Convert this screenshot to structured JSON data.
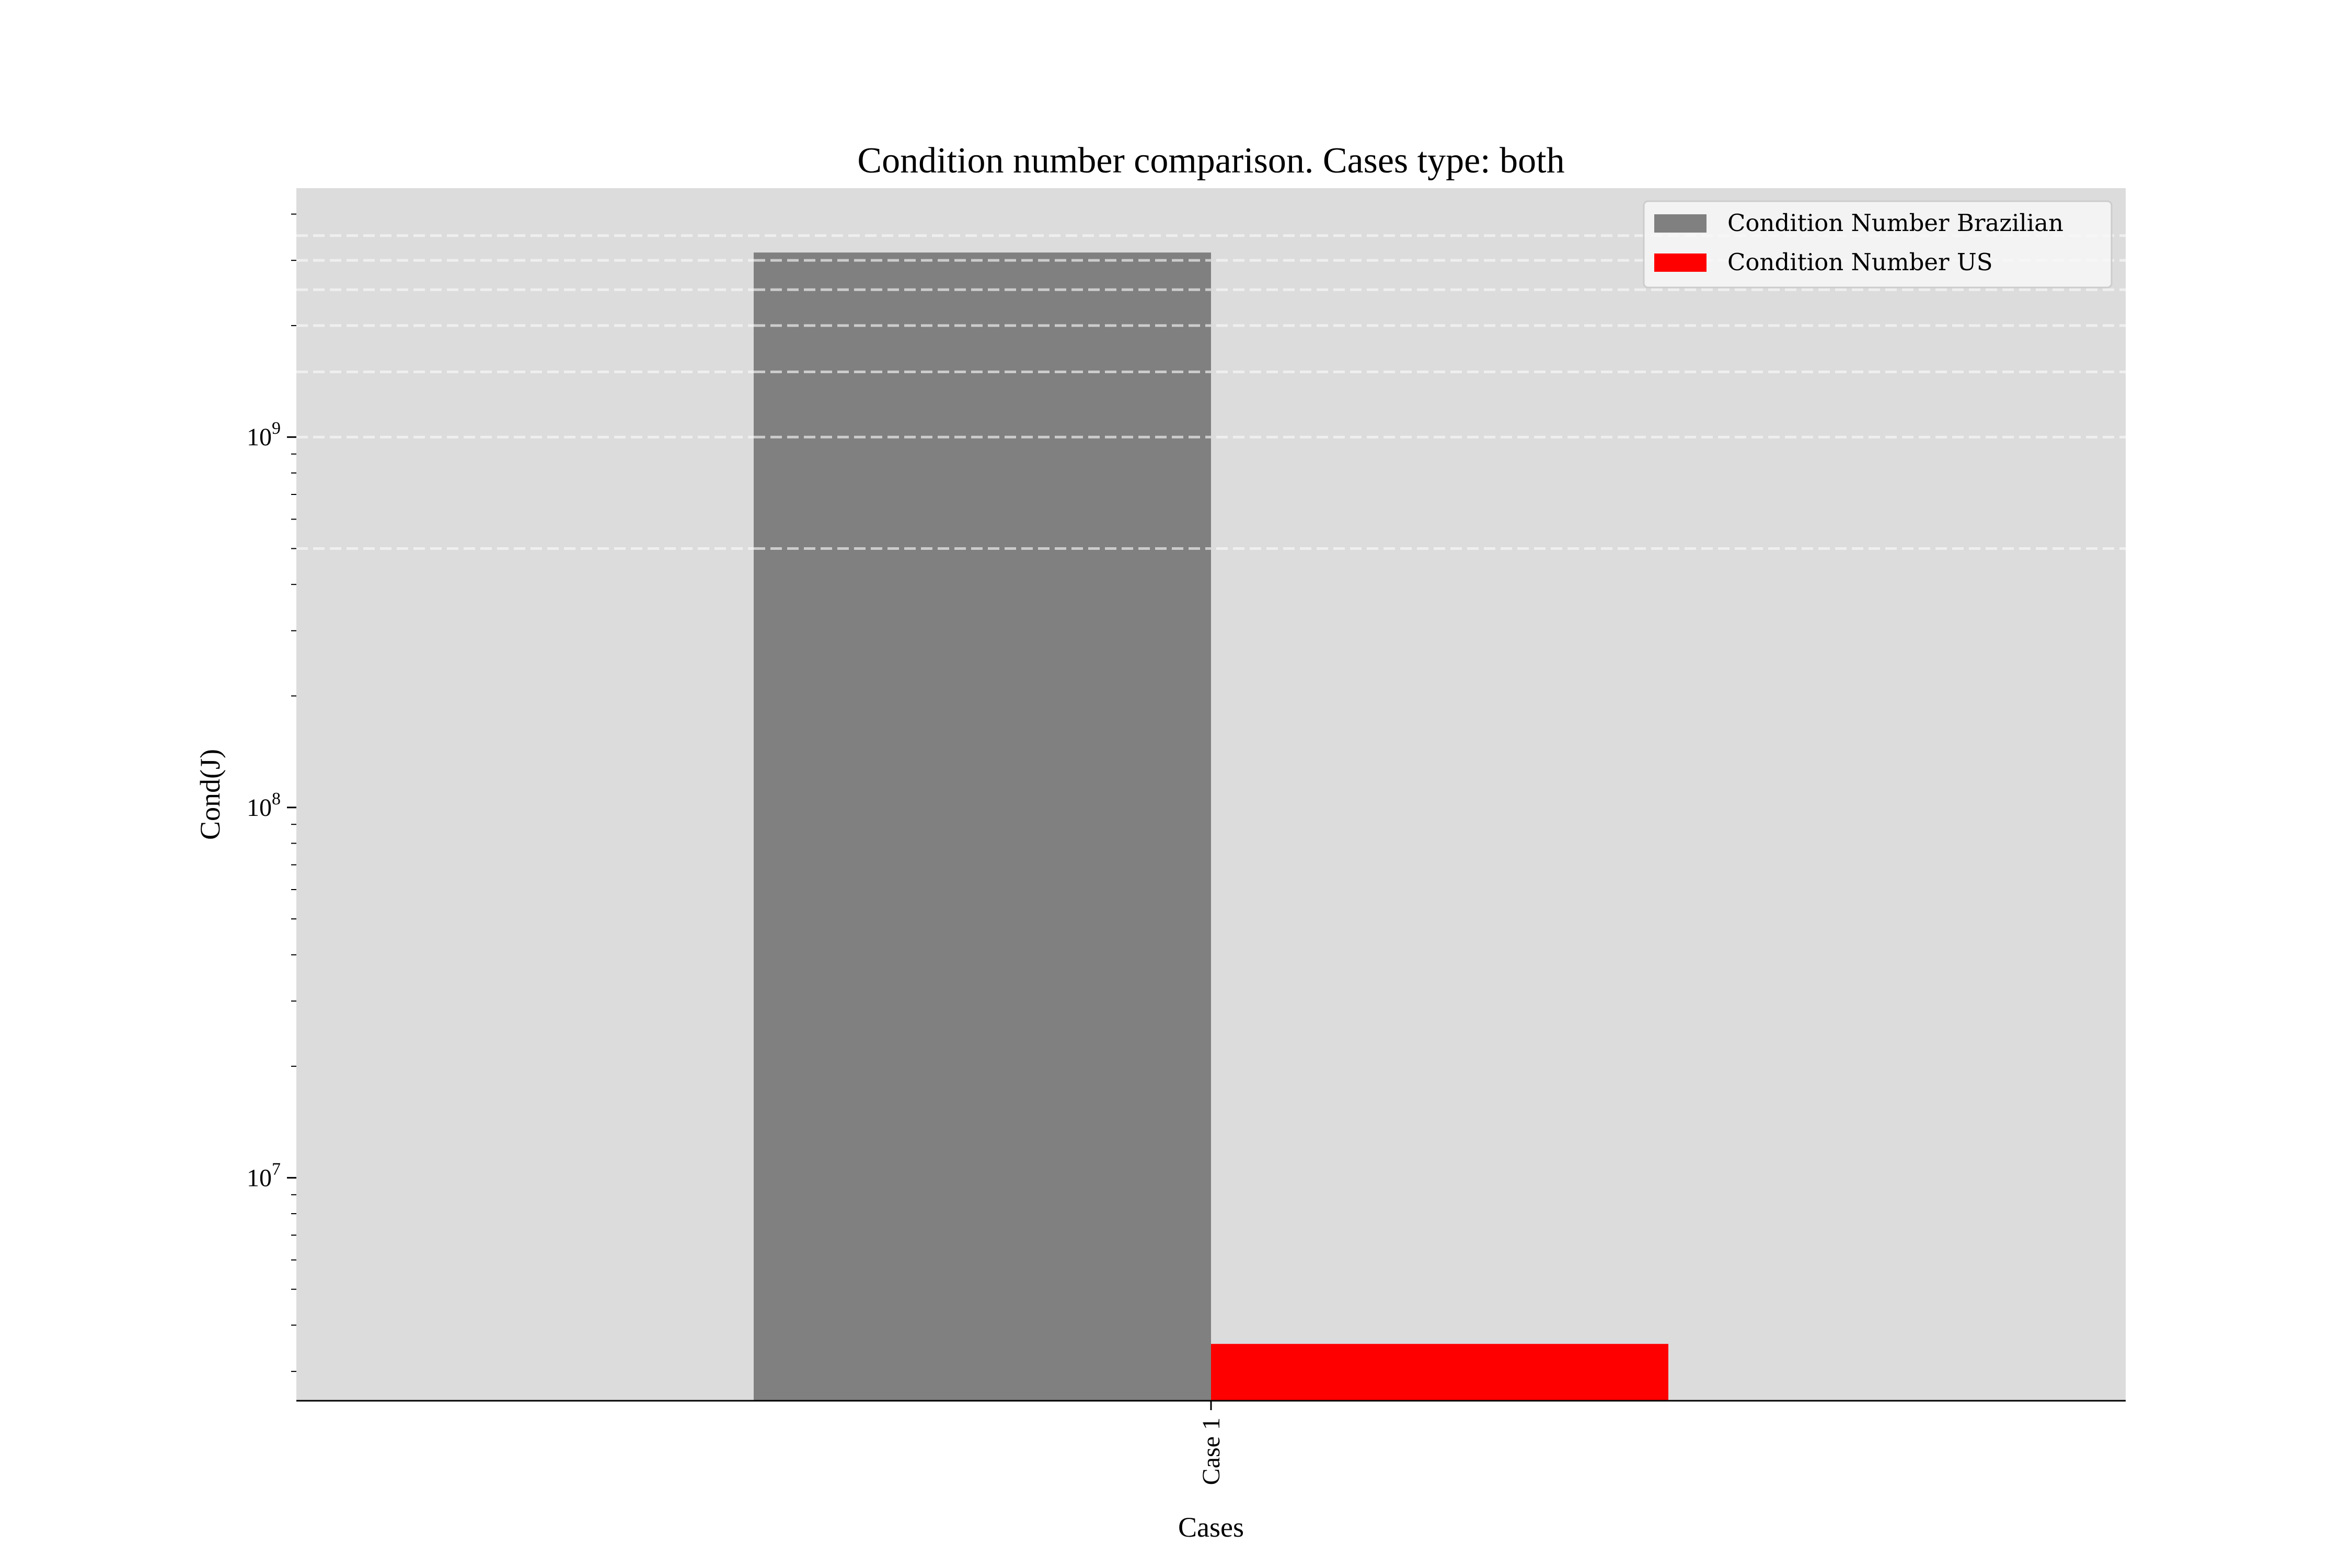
{
  "chart_data": {
    "type": "bar",
    "title": "Condition number comparison. Cases type: both",
    "xlabel": "Cases",
    "ylabel": "Cond(J)",
    "categories": [
      "Case 1"
    ],
    "yscale": "log",
    "ylim": [
      2500000,
      4700000000
    ],
    "y_ticks": [
      {
        "value": 10000000,
        "mantissa": "10",
        "exponent": "7"
      },
      {
        "value": 100000000,
        "mantissa": "10",
        "exponent": "8"
      },
      {
        "value": 1000000000,
        "mantissa": "10",
        "exponent": "9"
      }
    ],
    "series": [
      {
        "name": "Condition Number Brazilian",
        "values": [
          3150000000
        ],
        "color": "#808080"
      },
      {
        "name": "Condition Number US",
        "values": [
          3560000
        ],
        "color": "#ff0000"
      }
    ],
    "grid": {
      "on": true,
      "axis": "y",
      "style": "dashed",
      "values": [
        500000000,
        1000000000,
        1500000000,
        2000000000,
        2500000000,
        3000000000,
        3500000000
      ]
    },
    "legend": "top-right",
    "plot_background": "#dcdcdc"
  }
}
